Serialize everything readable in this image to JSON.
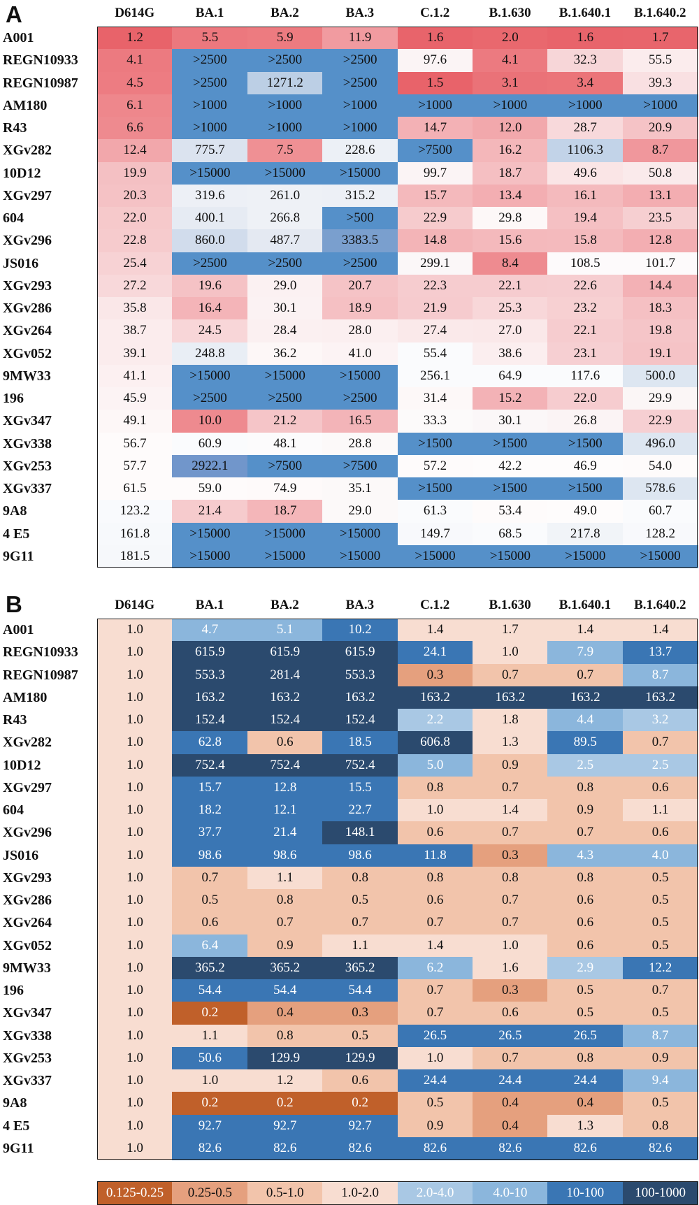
{
  "chart_data": [
    {
      "type": "heatmap",
      "panel": "A",
      "columns": [
        "D614G",
        "BA.1",
        "BA.2",
        "BA.3",
        "C.1.2",
        "B.1.630",
        "B.1.640.1",
        "B.1.640.2"
      ],
      "rows": [
        "A001",
        "REGN10933",
        "REGN10987",
        "AM180",
        "R43",
        "XGv282",
        "10D12",
        "XGv297",
        "604",
        "XGv296",
        "JS016",
        "XGv293",
        "XGv286",
        "XGv264",
        "XGv052",
        "9MW33",
        "196",
        "XGv347",
        "XGv338",
        "XGv253",
        "XGv337",
        "9A8",
        "4 E5",
        "9G11"
      ],
      "values": [
        [
          "1.2",
          "5.5",
          "5.9",
          "11.9",
          "1.6",
          "2.0",
          "1.6",
          "1.7"
        ],
        [
          "4.1",
          ">2500",
          ">2500",
          ">2500",
          "97.6",
          "4.1",
          "32.3",
          "55.5"
        ],
        [
          "4.5",
          ">2500",
          "1271.2",
          ">2500",
          "1.5",
          "3.1",
          "3.4",
          "39.3"
        ],
        [
          "6.1",
          ">1000",
          ">1000",
          ">1000",
          ">1000",
          ">1000",
          ">1000",
          ">1000"
        ],
        [
          "6.6",
          ">1000",
          ">1000",
          ">1000",
          "14.7",
          "12.0",
          "28.7",
          "20.9"
        ],
        [
          "12.4",
          "775.7",
          "7.5",
          "228.6",
          ">7500",
          "16.2",
          "1106.3",
          "8.7"
        ],
        [
          "19.9",
          ">15000",
          ">15000",
          ">15000",
          "99.7",
          "18.7",
          "49.6",
          "50.8"
        ],
        [
          "20.3",
          "319.6",
          "261.0",
          "315.2",
          "15.7",
          "13.4",
          "16.1",
          "13.1"
        ],
        [
          "22.0",
          "400.1",
          "266.8",
          ">500",
          "22.9",
          "29.8",
          "19.4",
          "23.5"
        ],
        [
          "22.8",
          "860.0",
          "487.7",
          "3383.5",
          "14.8",
          "15.6",
          "15.8",
          "12.8"
        ],
        [
          "25.4",
          ">2500",
          ">2500",
          ">2500",
          "299.1",
          "8.4",
          "108.5",
          "101.7"
        ],
        [
          "27.2",
          "19.6",
          "29.0",
          "20.7",
          "22.3",
          "22.1",
          "22.6",
          "14.4"
        ],
        [
          "35.8",
          "16.4",
          "30.1",
          "18.9",
          "21.9",
          "25.3",
          "23.2",
          "18.3"
        ],
        [
          "38.7",
          "24.5",
          "28.4",
          "28.0",
          "27.4",
          "27.0",
          "22.1",
          "19.8"
        ],
        [
          "39.1",
          "248.8",
          "36.2",
          "41.0",
          "55.4",
          "38.6",
          "23.1",
          "19.1"
        ],
        [
          "41.1",
          ">15000",
          ">15000",
          ">15000",
          "256.1",
          "64.9",
          "117.6",
          "500.0"
        ],
        [
          "45.9",
          ">2500",
          ">2500",
          ">2500",
          "31.4",
          "15.2",
          "22.0",
          "29.9"
        ],
        [
          "49.1",
          "10.0",
          "21.2",
          "16.5",
          "33.3",
          "30.1",
          "26.8",
          "22.9"
        ],
        [
          "56.7",
          "60.9",
          "48.1",
          "28.8",
          ">1500",
          ">1500",
          ">1500",
          "496.0"
        ],
        [
          "57.7",
          "2922.1",
          ">7500",
          ">7500",
          "57.2",
          "42.2",
          "46.9",
          "54.0"
        ],
        [
          "61.5",
          "59.0",
          "74.9",
          "35.1",
          ">1500",
          ">1500",
          ">1500",
          "578.6"
        ],
        [
          "123.2",
          "21.4",
          "18.7",
          "29.0",
          "61.3",
          "53.4",
          "49.0",
          "60.7"
        ],
        [
          "161.8",
          ">15000",
          ">15000",
          ">15000",
          "149.7",
          "68.5",
          "217.8",
          "128.2"
        ],
        [
          "181.5",
          ">15000",
          ">15000",
          ">15000",
          ">15000",
          ">15000",
          ">15000",
          ">15000"
        ]
      ],
      "colors": [
        [
          "#e8636a",
          "#ec787e",
          "#ed7b80",
          "#f19ba0",
          "#e8646b",
          "#e9686e",
          "#e8646b",
          "#e8656c"
        ],
        [
          "#ec7a80",
          "#5590c9",
          "#5590c9",
          "#5590c9",
          "#fbf4f5",
          "#ec7a80",
          "#f7d6d8",
          "#fbeced"
        ],
        [
          "#ed7c82",
          "#5590c9",
          "#bccfe5",
          "#5590c9",
          "#e8636a",
          "#ea7278",
          "#eb7479",
          "#f9e0e2"
        ],
        [
          "#ee878c",
          "#5590c9",
          "#5590c9",
          "#5590c9",
          "#5590c9",
          "#5590c9",
          "#5590c9",
          "#5590c9"
        ],
        [
          "#ee8a8f",
          "#5590c9",
          "#5590c9",
          "#5590c9",
          "#f3b1b5",
          "#f2a8ac",
          "#f8d9db",
          "#f5c3c6"
        ],
        [
          "#f2a7ab",
          "#dbe3ef",
          "#ef9094",
          "#ecf0f6",
          "#5590c9",
          "#f4b7ba",
          "#c2d3e8",
          "#f0979c"
        ],
        [
          "#f4c0c3",
          "#5590c9",
          "#5590c9",
          "#5590c9",
          "#fbf4f5",
          "#f5bfc2",
          "#fae5e6",
          "#faeaeb"
        ],
        [
          "#f5c2c5",
          "#edf0f6",
          "#eef1f6",
          "#edf0f6",
          "#f4b9bc",
          "#f3aeb2",
          "#f4baBd",
          "#f3adb1"
        ],
        [
          "#f6c9cb",
          "#e6ebf3",
          "#eef1f6",
          "#5590c9",
          "#f6cbcd",
          "#fdf8f8",
          "#f5c0c3",
          "#f6cfd1"
        ],
        [
          "#f6cbcd",
          "#d1dcec",
          "#e4e9f2",
          "#7a9fce",
          "#f3b4b7",
          "#f4b9bc",
          "#f4babd",
          "#f3aeb2"
        ],
        [
          "#f7d2d4",
          "#5590c9",
          "#5590c9",
          "#5590c9",
          "#fbf7f8",
          "#ee8b90",
          "#fdfafb",
          "#fdfafb"
        ],
        [
          "#f8d8da",
          "#f5c2c5",
          "#fbf1f2",
          "#f5c3c6",
          "#f6cccf",
          "#f6cccf",
          "#f6cdd0",
          "#f3b1b5"
        ],
        [
          "#fae7e8",
          "#f4b4b8",
          "#fbf2f3",
          "#f5c0c3",
          "#f6cbce",
          "#f8d7d9",
          "#f7d0d2",
          "#f5c0c3"
        ],
        [
          "#fbeced",
          "#f8d6d8",
          "#fbf0f1",
          "#fbeff0",
          "#fae9ea",
          "#fae8e9",
          "#f6cccf",
          "#f5c5c8"
        ],
        [
          "#fbeced",
          "#e9eef5",
          "#fdf7f7",
          "#fcf3f4",
          "#fafbfd",
          "#fbeeef",
          "#f6cfd2",
          "#f5c3c6"
        ],
        [
          "#fcf0f1",
          "#5590c9",
          "#5590c9",
          "#5590c9",
          "#fafbfd",
          "#fafbfd",
          "#fafbfd",
          "#dde6f1"
        ],
        [
          "#fcf3f4",
          "#5590c9",
          "#5590c9",
          "#5590c9",
          "#fdf8f8",
          "#f3b2b6",
          "#f6cccf",
          "#fbf6f6"
        ],
        [
          "#fdf7f7",
          "#ee8a8f",
          "#f5c5c8",
          "#f3b4b8",
          "#fcfafa",
          "#fbf7f8",
          "#fbf4f5",
          "#f6cfd2"
        ],
        [
          "#fefbfb",
          "#fafbfd",
          "#fcfbfc",
          "#fcf9f9",
          "#5590c9",
          "#5590c9",
          "#5590c9",
          "#dde6f1"
        ],
        [
          "#fefbfb",
          "#7196cb",
          "#5590c9",
          "#5590c9",
          "#fefbfb",
          "#fefcfc",
          "#fefcfc",
          "#fefbfb"
        ],
        [
          "#fefbfb",
          "#fefbfb",
          "#fefafa",
          "#fcf9f9",
          "#5590c9",
          "#5590c9",
          "#5590c9",
          "#dde6f1"
        ],
        [
          "#f9fafd",
          "#f6cbcd",
          "#f4b6b9",
          "#fcf9f9",
          "#fafbfd",
          "#fefbfb",
          "#fefcfc",
          "#fafbfd"
        ],
        [
          "#f7f9fc",
          "#5590c9",
          "#5590c9",
          "#5590c9",
          "#f8f9fc",
          "#fafbfd",
          "#f1f4f8",
          "#f8f9fc"
        ],
        [
          "#f6f8fb",
          "#5590c9",
          "#5590c9",
          "#5590c9",
          "#5590c9",
          "#5590c9",
          "#5590c9",
          "#5590c9"
        ]
      ]
    },
    {
      "type": "heatmap",
      "panel": "B",
      "columns": [
        "D614G",
        "BA.1",
        "BA.2",
        "BA.3",
        "C.1.2",
        "B.1.630",
        "B.1.640.1",
        "B.1.640.2"
      ],
      "rows": [
        "A001",
        "REGN10933",
        "REGN10987",
        "AM180",
        "R43",
        "XGv282",
        "10D12",
        "XGv297",
        "604",
        "XGv296",
        "JS016",
        "XGv293",
        "XGv286",
        "XGv264",
        "XGv052",
        "9MW33",
        "196",
        "XGv347",
        "XGv338",
        "XGv253",
        "XGv337",
        "9A8",
        "4 E5",
        "9G11"
      ],
      "values": [
        [
          "1.0",
          "4.7",
          "5.1",
          "10.2",
          "1.4",
          "1.7",
          "1.4",
          "1.4"
        ],
        [
          "1.0",
          "615.9",
          "615.9",
          "615.9",
          "24.1",
          "1.0",
          "7.9",
          "13.7"
        ],
        [
          "1.0",
          "553.3",
          "281.4",
          "553.3",
          "0.3",
          "0.7",
          "0.7",
          "8.7"
        ],
        [
          "1.0",
          "163.2",
          "163.2",
          "163.2",
          "163.2",
          "163.2",
          "163.2",
          "163.2"
        ],
        [
          "1.0",
          "152.4",
          "152.4",
          "152.4",
          "2.2",
          "1.8",
          "4.4",
          "3.2"
        ],
        [
          "1.0",
          "62.8",
          "0.6",
          "18.5",
          "606.8",
          "1.3",
          "89.5",
          "0.7"
        ],
        [
          "1.0",
          "752.4",
          "752.4",
          "752.4",
          "5.0",
          "0.9",
          "2.5",
          "2.5"
        ],
        [
          "1.0",
          "15.7",
          "12.8",
          "15.5",
          "0.8",
          "0.7",
          "0.8",
          "0.6"
        ],
        [
          "1.0",
          "18.2",
          "12.1",
          "22.7",
          "1.0",
          "1.4",
          "0.9",
          "1.1"
        ],
        [
          "1.0",
          "37.7",
          "21.4",
          "148.1",
          "0.6",
          "0.7",
          "0.7",
          "0.6"
        ],
        [
          "1.0",
          "98.6",
          "98.6",
          "98.6",
          "11.8",
          "0.3",
          "4.3",
          "4.0"
        ],
        [
          "1.0",
          "0.7",
          "1.1",
          "0.8",
          "0.8",
          "0.8",
          "0.8",
          "0.5"
        ],
        [
          "1.0",
          "0.5",
          "0.8",
          "0.5",
          "0.6",
          "0.7",
          "0.6",
          "0.5"
        ],
        [
          "1.0",
          "0.6",
          "0.7",
          "0.7",
          "0.7",
          "0.7",
          "0.6",
          "0.5"
        ],
        [
          "1.0",
          "6.4",
          "0.9",
          "1.1",
          "1.4",
          "1.0",
          "0.6",
          "0.5"
        ],
        [
          "1.0",
          "365.2",
          "365.2",
          "365.2",
          "6.2",
          "1.6",
          "2.9",
          "12.2"
        ],
        [
          "1.0",
          "54.4",
          "54.4",
          "54.4",
          "0.7",
          "0.3",
          "0.5",
          "0.7"
        ],
        [
          "1.0",
          "0.2",
          "0.4",
          "0.3",
          "0.7",
          "0.6",
          "0.5",
          "0.5"
        ],
        [
          "1.0",
          "1.1",
          "0.8",
          "0.5",
          "26.5",
          "26.5",
          "26.5",
          "8.7"
        ],
        [
          "1.0",
          "50.6",
          "129.9",
          "129.9",
          "1.0",
          "0.7",
          "0.8",
          "0.9"
        ],
        [
          "1.0",
          "1.0",
          "1.2",
          "0.6",
          "24.4",
          "24.4",
          "24.4",
          "9.4"
        ],
        [
          "1.0",
          "0.2",
          "0.2",
          "0.2",
          "0.5",
          "0.4",
          "0.4",
          "0.5"
        ],
        [
          "1.0",
          "92.7",
          "92.7",
          "92.7",
          "0.9",
          "0.4",
          "1.3",
          "0.8"
        ],
        [
          "1.0",
          "82.6",
          "82.6",
          "82.6",
          "82.6",
          "82.6",
          "82.6",
          "82.6"
        ]
      ]
    }
  ],
  "panel_labels": {
    "a": "A",
    "b": "B"
  },
  "legend": {
    "bins": [
      {
        "label": "0.125-0.25",
        "min": 0.125,
        "max": 0.25,
        "color": "#c0602a"
      },
      {
        "label": "0.25-0.5",
        "min": 0.25,
        "max": 0.5,
        "color": "#e5a07e"
      },
      {
        "label": "0.5-1.0",
        "min": 0.5,
        "max": 1.0,
        "color": "#f2c4ab"
      },
      {
        "label": "1.0-2.0",
        "min": 1.0,
        "max": 2.0,
        "color": "#f8ddd1"
      },
      {
        "label": "2.0-4.0",
        "min": 2.0,
        "max": 4.0,
        "color": "#a9c8e4"
      },
      {
        "label": "4.0-10",
        "min": 4.0,
        "max": 10,
        "color": "#8bb6dc"
      },
      {
        "label": "10-100",
        "min": 10,
        "max": 100,
        "color": "#3a76b4"
      },
      {
        "label": "100-1000",
        "min": 100,
        "max": 1000,
        "color": "#2b4a6e"
      }
    ],
    "light_text_bins": [
      0,
      4,
      5,
      6,
      7
    ]
  }
}
